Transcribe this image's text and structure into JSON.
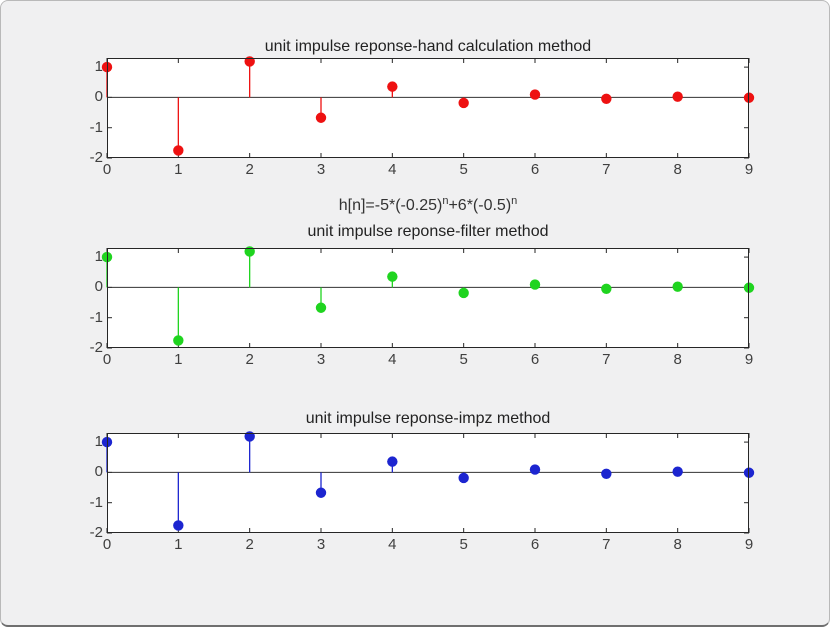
{
  "window": {
    "background": "#f0f0f1",
    "axes_background": "#ffffff",
    "axis_line_color": "#262626",
    "baseline_color": "#333333",
    "tick_text_color": "#3f3f3f",
    "title_text_color": "#222222"
  },
  "figure": {
    "formula": {
      "base1": "h[n]=-5*(-0.25)",
      "exp1": "n",
      "base2": "+6*(-0.5)",
      "exp2": "n"
    }
  },
  "chart_data": [
    {
      "type": "stem",
      "title": "unit impulse reponse-hand calculation method",
      "color": "#ee1111",
      "x": [
        0,
        1,
        2,
        3,
        4,
        5,
        6,
        7,
        8,
        9
      ],
      "values": [
        1,
        -1.75,
        1.1875,
        -0.671875,
        0.355469,
        -0.182617,
        0.092529,
        -0.04657,
        0.023361,
        -0.0117
      ],
      "xlabel": "h[n]=-5*(-0.25)^n+6*(-0.5)^n",
      "xlim": [
        0,
        9
      ],
      "ylim": [
        -2,
        1.3
      ],
      "xtick_labels": [
        "0",
        "1",
        "2",
        "3",
        "4",
        "5",
        "6",
        "7",
        "8",
        "9"
      ],
      "ytick_values": [
        1,
        0,
        -1,
        -2
      ],
      "ytick_labels": [
        "1",
        "0",
        "-1",
        "-2"
      ],
      "grid": false,
      "legend": null
    },
    {
      "type": "stem",
      "title": "unit impulse reponse-filter method",
      "color": "#1fd41f",
      "x": [
        0,
        1,
        2,
        3,
        4,
        5,
        6,
        7,
        8,
        9
      ],
      "values": [
        1,
        -1.75,
        1.1875,
        -0.671875,
        0.355469,
        -0.182617,
        0.092529,
        -0.04657,
        0.023361,
        -0.0117
      ],
      "xlabel": "",
      "xlim": [
        0,
        9
      ],
      "ylim": [
        -2,
        1.3
      ],
      "xtick_labels": [
        "0",
        "1",
        "2",
        "3",
        "4",
        "5",
        "6",
        "7",
        "8",
        "9"
      ],
      "ytick_values": [
        1,
        0,
        -1,
        -2
      ],
      "ytick_labels": [
        "1",
        "0",
        "-1",
        "-2"
      ],
      "grid": false,
      "legend": null
    },
    {
      "type": "stem",
      "title": "unit impulse reponse-impz method",
      "color": "#1c25d0",
      "x": [
        0,
        1,
        2,
        3,
        4,
        5,
        6,
        7,
        8,
        9
      ],
      "values": [
        1,
        -1.75,
        1.1875,
        -0.671875,
        0.355469,
        -0.182617,
        0.092529,
        -0.04657,
        0.023361,
        -0.0117
      ],
      "xlabel": "",
      "xlim": [
        0,
        9
      ],
      "ylim": [
        -2,
        1.3
      ],
      "xtick_labels": [
        "0",
        "1",
        "2",
        "3",
        "4",
        "5",
        "6",
        "7",
        "8",
        "9"
      ],
      "ytick_values": [
        1,
        0,
        -1,
        -2
      ],
      "ytick_labels": [
        "1",
        "0",
        "-1",
        "-2"
      ],
      "grid": false,
      "legend": null
    }
  ]
}
